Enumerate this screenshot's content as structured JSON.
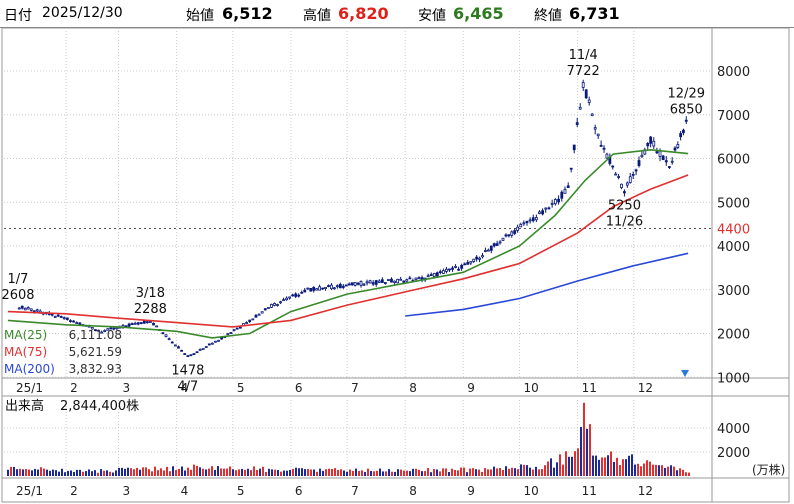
{
  "header": {
    "date_label": "日付",
    "date_value": "2025/12/30",
    "open_label": "始値",
    "open_value": "6,512",
    "high_label": "高値",
    "high_value": "6,820",
    "low_label": "安値",
    "low_value": "6,465",
    "close_label": "終値",
    "close_value": "6,731"
  },
  "colors": {
    "up": "#0a1a7a",
    "high": "#e0201b",
    "low": "#2c7a1e",
    "ma25": "#3a8a2a",
    "ma75": "#e03030",
    "ma200": "#2a48d8",
    "volume_up": "#e03030",
    "volume_down": "#1a2a9a"
  },
  "chart_data": [
    {
      "type": "candlestick",
      "x_axis_type": "month",
      "x_tick_labels": [
        "25/1",
        "2",
        "3",
        "4",
        "5",
        "6",
        "7",
        "8",
        "9",
        "10",
        "11",
        "12"
      ],
      "ylim": [
        800,
        8800
      ],
      "y_ticks": [
        1000,
        2000,
        3000,
        4000,
        5000,
        6000,
        7000,
        8000
      ],
      "grid": true,
      "reference_line": {
        "value": 4400,
        "label": "4400"
      },
      "price_series": [
        {
          "date": "2025-01-07",
          "value": 2608
        },
        {
          "date": "2025-01-31",
          "value": 2350
        },
        {
          "date": "2025-02-20",
          "value": 2050
        },
        {
          "date": "2025-03-18",
          "value": 2288
        },
        {
          "date": "2025-04-07",
          "value": 1478
        },
        {
          "date": "2025-04-25",
          "value": 1900
        },
        {
          "date": "2025-05-10",
          "value": 2300
        },
        {
          "date": "2025-05-20",
          "value": 2600
        },
        {
          "date": "2025-06-10",
          "value": 3000
        },
        {
          "date": "2025-07-10",
          "value": 3150
        },
        {
          "date": "2025-08-10",
          "value": 3250
        },
        {
          "date": "2025-09-05",
          "value": 3600
        },
        {
          "date": "2025-09-30",
          "value": 4400
        },
        {
          "date": "2025-10-15",
          "value": 4800
        },
        {
          "date": "2025-10-27",
          "value": 5300
        },
        {
          "date": "2025-11-04",
          "value": 7722
        },
        {
          "date": "2025-11-12",
          "value": 6500
        },
        {
          "date": "2025-11-26",
          "value": 5250
        },
        {
          "date": "2025-12-10",
          "value": 6400
        },
        {
          "date": "2025-12-20",
          "value": 5800
        },
        {
          "date": "2025-12-29",
          "value": 6850
        }
      ],
      "annotations": [
        {
          "date": "2025-01-07",
          "value": 2608,
          "date_label": "1/7",
          "value_label": "2608",
          "position": "above"
        },
        {
          "date": "2025-03-18",
          "value": 2288,
          "date_label": "3/18",
          "value_label": "2288",
          "position": "above"
        },
        {
          "date": "2025-04-07",
          "value": 1478,
          "date_label": "4/7",
          "value_label": "1478",
          "position": "below"
        },
        {
          "date": "2025-11-04",
          "value": 7722,
          "date_label": "11/4",
          "value_label": "7722",
          "position": "above"
        },
        {
          "date": "2025-11-26",
          "value": 5250,
          "date_label": "11/26",
          "value_label": "5250",
          "position": "below"
        },
        {
          "date": "2025-12-29",
          "value": 6850,
          "date_label": "12/29",
          "value_label": "6850",
          "position": "above"
        }
      ],
      "moving_averages": [
        {
          "name": "MA(25)",
          "label": "MA(25)",
          "value_text": "6,111.08",
          "color": "#3a8a2a",
          "points": [
            {
              "date": "2025-01-01",
              "value": 2300
            },
            {
              "date": "2025-02-01",
              "value": 2200
            },
            {
              "date": "2025-03-01",
              "value": 2150
            },
            {
              "date": "2025-04-01",
              "value": 2050
            },
            {
              "date": "2025-04-20",
              "value": 1900
            },
            {
              "date": "2025-05-10",
              "value": 2000
            },
            {
              "date": "2025-06-01",
              "value": 2500
            },
            {
              "date": "2025-07-01",
              "value": 2900
            },
            {
              "date": "2025-08-01",
              "value": 3150
            },
            {
              "date": "2025-09-01",
              "value": 3400
            },
            {
              "date": "2025-10-01",
              "value": 4000
            },
            {
              "date": "2025-10-20",
              "value": 4700
            },
            {
              "date": "2025-11-05",
              "value": 5500
            },
            {
              "date": "2025-11-20",
              "value": 6100
            },
            {
              "date": "2025-12-10",
              "value": 6200
            },
            {
              "date": "2025-12-30",
              "value": 6111
            }
          ]
        },
        {
          "name": "MA(75)",
          "label": "MA(75)",
          "value_text": "5,621.59",
          "color": "#e03030",
          "points": [
            {
              "date": "2025-01-01",
              "value": 2500
            },
            {
              "date": "2025-02-01",
              "value": 2450
            },
            {
              "date": "2025-03-01",
              "value": 2350
            },
            {
              "date": "2025-04-01",
              "value": 2250
            },
            {
              "date": "2025-05-01",
              "value": 2150
            },
            {
              "date": "2025-06-01",
              "value": 2300
            },
            {
              "date": "2025-07-01",
              "value": 2650
            },
            {
              "date": "2025-08-01",
              "value": 2950
            },
            {
              "date": "2025-09-01",
              "value": 3250
            },
            {
              "date": "2025-10-01",
              "value": 3600
            },
            {
              "date": "2025-11-01",
              "value": 4300
            },
            {
              "date": "2025-11-20",
              "value": 4900
            },
            {
              "date": "2025-12-10",
              "value": 5300
            },
            {
              "date": "2025-12-30",
              "value": 5622
            }
          ]
        },
        {
          "name": "MA(200)",
          "label": "MA(200)",
          "value_text": "3,832.93",
          "color": "#2a48d8",
          "points": [
            {
              "date": "2025-08-01",
              "value": 2400
            },
            {
              "date": "2025-09-01",
              "value": 2550
            },
            {
              "date": "2025-10-01",
              "value": 2800
            },
            {
              "date": "2025-11-01",
              "value": 3200
            },
            {
              "date": "2025-12-01",
              "value": 3550
            },
            {
              "date": "2025-12-30",
              "value": 3833
            }
          ]
        }
      ]
    },
    {
      "type": "bar",
      "title": "出来高",
      "latest_volume_text": "2,844,400株",
      "unit_label": "(万株)",
      "ylim": [
        0,
        6500
      ],
      "y_ticks": [
        2000,
        4000
      ],
      "x_tick_labels": [
        "25/1",
        "2",
        "3",
        "4",
        "5",
        "6",
        "7",
        "8",
        "9",
        "10",
        "11",
        "12"
      ],
      "volume_points": [
        {
          "date": "2025-01-07",
          "value": 600
        },
        {
          "date": "2025-02-15",
          "value": 400
        },
        {
          "date": "2025-04-07",
          "value": 700
        },
        {
          "date": "2025-06-01",
          "value": 500
        },
        {
          "date": "2025-08-01",
          "value": 450
        },
        {
          "date": "2025-09-15",
          "value": 550
        },
        {
          "date": "2025-10-15",
          "value": 900
        },
        {
          "date": "2025-10-28",
          "value": 1600
        },
        {
          "date": "2025-11-01",
          "value": 2300
        },
        {
          "date": "2025-11-04",
          "value": 6100
        },
        {
          "date": "2025-11-10",
          "value": 1700
        },
        {
          "date": "2025-11-26",
          "value": 1400
        },
        {
          "date": "2025-12-15",
          "value": 900
        },
        {
          "date": "2025-12-30",
          "value": 284
        }
      ]
    }
  ]
}
